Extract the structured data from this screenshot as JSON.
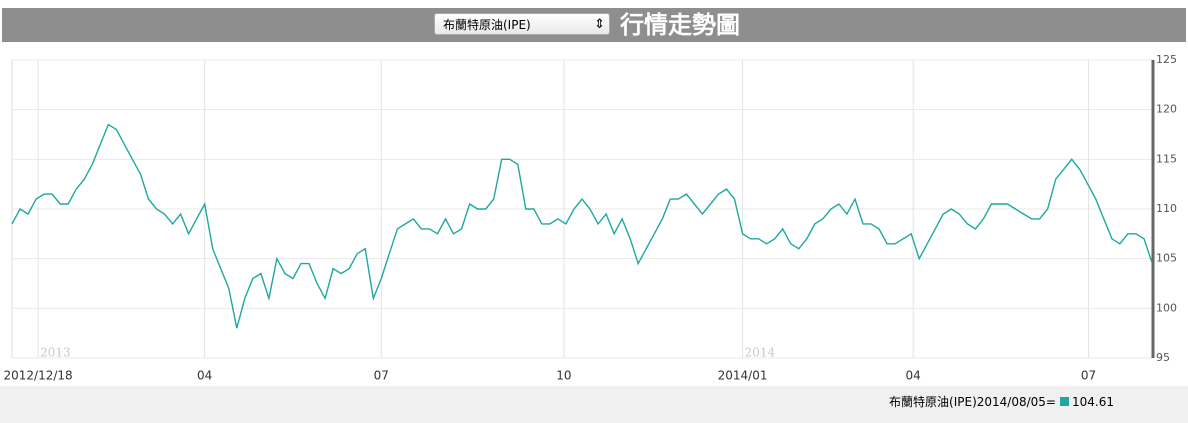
{
  "selector": "布蘭特原油(IPE)",
  "header_title": "行情走勢圖",
  "footer_label": "布蘭特原油(IPE)2014/08/05=",
  "chart_data": {
    "type": "line",
    "annotations": [
      {
        "text": "2013",
        "at": 3.25
      },
      {
        "text": "2014",
        "at": 91
      }
    ],
    "series": [
      {
        "name": "布蘭特原油(IPE)",
        "color": "#1fa89f",
        "values": [
          108.5,
          110,
          109.5,
          111,
          111.5,
          111.5,
          110.5,
          110.5,
          112,
          113,
          114.5,
          116.5,
          118.5,
          118,
          116.5,
          115,
          113.5,
          111,
          110,
          109.5,
          108.5,
          109.5,
          107.5,
          109,
          110.5,
          106,
          104,
          102,
          98,
          101,
          103,
          103.5,
          101,
          105,
          103.5,
          103,
          104.5,
          104.5,
          102.5,
          101,
          104,
          103.5,
          104,
          105.5,
          106,
          101,
          103,
          105.5,
          108,
          108.5,
          109,
          108,
          108,
          107.5,
          109,
          107.5,
          108,
          110.5,
          110,
          110,
          111,
          115,
          115,
          114.5,
          110,
          110,
          108.5,
          108.5,
          109,
          108.5,
          110,
          111,
          110,
          108.5,
          109.5,
          107.5,
          109,
          107,
          104.5,
          106,
          107.5,
          109,
          111,
          111,
          111.5,
          110.5,
          109.5,
          110.5,
          111.5,
          112,
          111,
          107.5,
          107,
          107,
          106.5,
          107,
          108,
          106.5,
          106,
          107,
          108.5,
          109,
          110,
          110.5,
          109.5,
          111,
          108.5,
          108.5,
          108,
          106.5,
          106.5,
          107,
          107.5,
          105,
          106.5,
          108,
          109.5,
          110,
          109.5,
          108.5,
          108,
          109,
          110.5,
          110.5,
          110.5,
          110,
          109.5,
          109,
          109,
          110,
          113,
          114,
          115,
          114,
          112.5,
          111,
          109,
          107,
          106.5,
          107.5,
          107.5,
          107,
          104.61
        ]
      }
    ],
    "xlim": [
      0,
      142
    ],
    "xticks": [
      {
        "value": 3.25,
        "label": "2012/12/18"
      },
      {
        "value": 24,
        "label": "04"
      },
      {
        "value": 46,
        "label": "07"
      },
      {
        "value": 68.75,
        "label": "10"
      },
      {
        "value": 91,
        "label": "2014/01"
      },
      {
        "value": 112.25,
        "label": "04"
      },
      {
        "value": 134.1,
        "label": "07"
      }
    ],
    "ylim": [
      95,
      125
    ],
    "yticks": [
      95,
      100,
      105,
      110,
      115,
      120,
      125
    ],
    "grid": true
  }
}
